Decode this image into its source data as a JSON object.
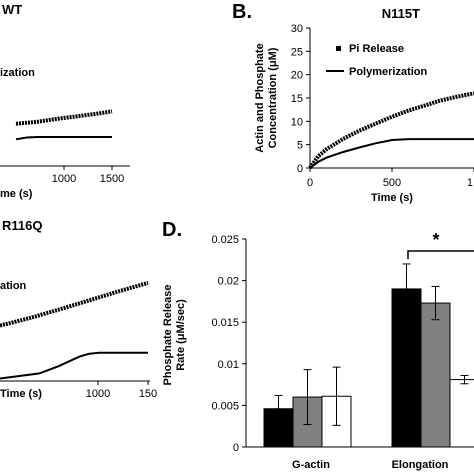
{
  "chart_data": [
    {
      "panel": "A",
      "label": "",
      "name": "WT",
      "type": "line",
      "x_axis": {
        "title": "me (s)",
        "ticks": [
          "1000",
          "1500"
        ],
        "range": [
          600,
          1500
        ]
      },
      "legend": [
        "ization"
      ],
      "series": [
        {
          "name": "Pi Release",
          "style": "points",
          "x": [
            600,
            800,
            1000,
            1200,
            1400,
            1500
          ],
          "y": [
            9.2,
            9.6,
            10.3,
            10.9,
            11.5,
            11.9
          ]
        },
        {
          "name": "Polymerization",
          "style": "line",
          "x": [
            600,
            700,
            800,
            1000,
            1200,
            1500
          ],
          "y": [
            5.8,
            6.2,
            6.3,
            6.3,
            6.3,
            6.3
          ]
        }
      ],
      "ylim": [
        0,
        30
      ]
    },
    {
      "panel": "B",
      "label": "B.",
      "name": "N115T",
      "type": "line",
      "y_axis": {
        "title_lines": [
          "Actin and Phosphate",
          "Concentration (μM)"
        ],
        "ticks": [
          "0",
          "5",
          "10",
          "15",
          "20",
          "25",
          "30"
        ]
      },
      "x_axis": {
        "title": "Time (s)",
        "ticks": [
          "0",
          "500",
          "1"
        ]
      },
      "legend": [
        "Pi Release",
        "Polymerization"
      ],
      "xlim": [
        0,
        1000
      ],
      "ylim": [
        0,
        30
      ],
      "series": [
        {
          "name": "Pi Release",
          "style": "points",
          "x": [
            0,
            50,
            100,
            200,
            300,
            400,
            500,
            600,
            700,
            800,
            900,
            1000
          ],
          "y": [
            0,
            2.5,
            4.0,
            6.2,
            8.0,
            9.5,
            11.0,
            12.3,
            13.4,
            14.5,
            15.3,
            16.0
          ]
        },
        {
          "name": "Polymerization",
          "style": "line",
          "x": [
            0,
            50,
            100,
            200,
            300,
            400,
            500,
            600,
            700,
            800,
            1000
          ],
          "y": [
            0,
            1.3,
            2.2,
            3.4,
            4.4,
            5.3,
            6.0,
            6.2,
            6.2,
            6.2,
            6.2
          ]
        }
      ]
    },
    {
      "panel": "C",
      "label": "",
      "name": "R116Q",
      "type": "line",
      "x_axis": {
        "title": "Time (s)",
        "ticks": [
          "1000",
          "150"
        ]
      },
      "legend": [
        "ation"
      ],
      "xlim": [
        0,
        1500
      ],
      "ylim": [
        0,
        30
      ],
      "series": [
        {
          "name": "Pi Release",
          "style": "points",
          "x": [
            0,
            300,
            600,
            900,
            1200,
            1500
          ],
          "y": [
            11.0,
            12.5,
            14.2,
            16.0,
            17.8,
            19.5
          ]
        },
        {
          "name": "Polymerization",
          "style": "line",
          "x": [
            0,
            400,
            600,
            800,
            900,
            1000,
            1200,
            1500
          ],
          "y": [
            0.5,
            1.5,
            3.0,
            4.8,
            5.4,
            5.6,
            5.6,
            5.6
          ]
        }
      ]
    },
    {
      "panel": "D",
      "label": "D.",
      "type": "bar",
      "y_axis": {
        "title_lines": [
          "Phosphate Release",
          "Rate (μM/sec)"
        ],
        "ticks": [
          "0",
          "0.005",
          "0.01",
          "0.015",
          "0.02",
          "0.025"
        ]
      },
      "ylim": [
        0,
        0.025
      ],
      "categories": [
        "G-actin",
        "Elongation"
      ],
      "series": [
        {
          "values": [
            0.0046,
            0.019
          ],
          "errors": [
            0.0016,
            0.003
          ],
          "color": "#000000"
        },
        {
          "values": [
            0.006,
            0.0173
          ],
          "errors": [
            0.0033,
            0.002
          ],
          "color": "#808080"
        },
        {
          "values": [
            0.0061,
            0.0081
          ],
          "errors": [
            0.0035,
            0.0005
          ],
          "color": "#ffffff"
        }
      ],
      "significance": "*"
    }
  ]
}
